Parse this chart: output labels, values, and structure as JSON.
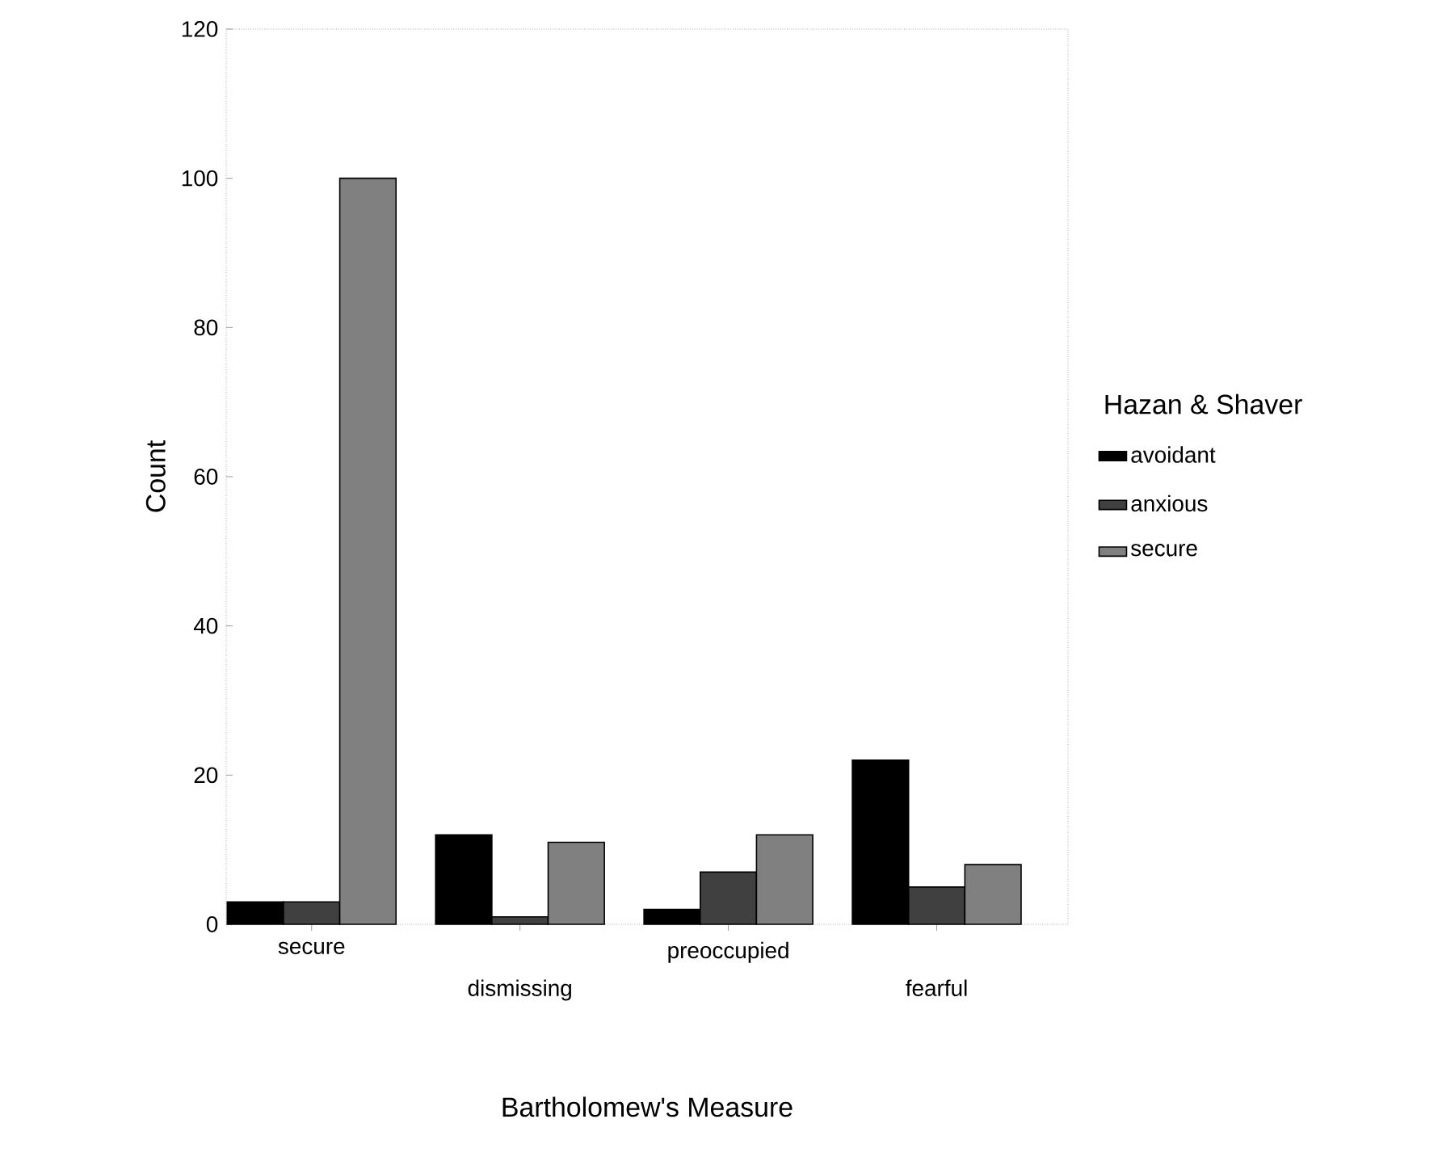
{
  "chart_data": {
    "type": "bar",
    "xlabel": "Bartholomew's Measure",
    "ylabel": "Count",
    "legend_title": "Hazan & Shaver",
    "categories": [
      "secure",
      "dismissing",
      "preoccupied",
      "fearful"
    ],
    "series": [
      {
        "name": "avoidant",
        "color": "#000000",
        "values": [
          3,
          12,
          2,
          22
        ]
      },
      {
        "name": "anxious",
        "color": "#404040",
        "values": [
          3,
          1,
          7,
          5
        ]
      },
      {
        "name": "secure",
        "color": "#808080",
        "values": [
          100,
          11,
          12,
          8
        ]
      }
    ],
    "ylim": [
      0,
      120
    ],
    "yticks": [
      0,
      20,
      40,
      60,
      80,
      100,
      120
    ],
    "legend": "right",
    "grid": false
  }
}
